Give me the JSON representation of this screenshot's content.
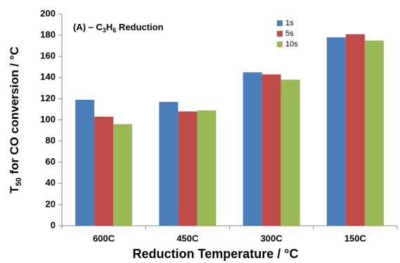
{
  "chart_data": {
    "type": "bar",
    "annotation_parts": [
      "(A) – C",
      "3",
      "H",
      "6",
      " Reduction"
    ],
    "ylabel_parts": [
      "T",
      "50",
      " for CO conversion / °C"
    ],
    "xlabel": "Reduction Temperature / °C",
    "categories": [
      "600C",
      "450C",
      "300C",
      "150C"
    ],
    "series": [
      {
        "name": "1s",
        "color": "#4a7ebb",
        "values": [
          119,
          117,
          145,
          178
        ]
      },
      {
        "name": "5s",
        "color": "#be4b48",
        "values": [
          103,
          108,
          143,
          181
        ]
      },
      {
        "name": "10s",
        "color": "#98b954",
        "values": [
          96,
          109,
          138,
          175
        ]
      }
    ],
    "ylim": [
      0,
      200
    ],
    "yticks": [
      0,
      20,
      40,
      60,
      80,
      100,
      120,
      140,
      160,
      180,
      200
    ],
    "grid": false,
    "legend": "top-right"
  }
}
